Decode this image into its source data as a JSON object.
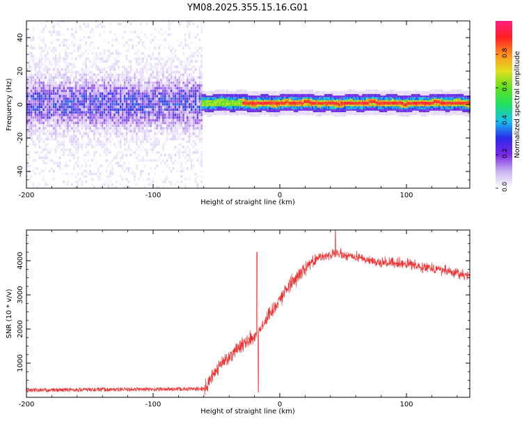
{
  "title": "YM08.2025.355.15.16.G01",
  "chart_data": [
    {
      "type": "heatmap",
      "name": "spectrogram",
      "xlabel": "Height of straight line (km)",
      "ylabel": "Frequency (Hz)",
      "xlim": [
        -200,
        150
      ],
      "ylim": [
        -50,
        50
      ],
      "xticks": [
        -200,
        -100,
        0,
        100
      ],
      "yticks": [
        -40,
        -20,
        0,
        20,
        40
      ],
      "xtick_labels": [
        "-200",
        "-100",
        "0",
        "100"
      ],
      "ytick_labels": [
        "-40",
        "-20",
        "0",
        "20",
        "40"
      ],
      "noise_region_x": [
        -200,
        -62
      ],
      "signal_region_x": [
        -62,
        150
      ],
      "signal_center_freq_hz": 0.5,
      "colorbar": {
        "label": "Normalized spectral amplitude",
        "range": [
          0.0,
          1.0
        ],
        "ticks": [
          0.0,
          0.2,
          0.4,
          0.6,
          0.8
        ],
        "tick_labels": [
          "0.0",
          "0.2",
          "0.4",
          "0.6",
          "0.8"
        ],
        "colormap": [
          "#ffffff",
          "#c8b4f0",
          "#7a28e6",
          "#2a2ae8",
          "#18c0f0",
          "#20e060",
          "#60e020",
          "#e0e020",
          "#ff9020",
          "#ff2020",
          "#ff2080"
        ]
      }
    },
    {
      "type": "line",
      "name": "snr",
      "xlabel": "Height of straight line (km)",
      "ylabel": "SNR (10 * v/v)",
      "xlim": [
        -200,
        150
      ],
      "ylim": [
        0,
        4900
      ],
      "xticks": [
        -200,
        -100,
        0,
        100
      ],
      "yticks": [
        1000,
        2000,
        3000,
        4000
      ],
      "xtick_labels": [
        "-200",
        "-100",
        "0",
        "100"
      ],
      "ytick_labels": [
        "1000",
        "2000",
        "3000",
        "4000"
      ],
      "color": "#f03030",
      "envelope": [
        {
          "x": -200,
          "y": 180
        },
        {
          "x": -150,
          "y": 200
        },
        {
          "x": -100,
          "y": 210
        },
        {
          "x": -60,
          "y": 220
        },
        {
          "x": -48,
          "y": 900
        },
        {
          "x": -35,
          "y": 1400
        },
        {
          "x": -20,
          "y": 1800
        },
        {
          "x": -10,
          "y": 2300
        },
        {
          "x": 0,
          "y": 2900
        },
        {
          "x": 10,
          "y": 3400
        },
        {
          "x": 20,
          "y": 3800
        },
        {
          "x": 30,
          "y": 4100
        },
        {
          "x": 45,
          "y": 4200
        },
        {
          "x": 60,
          "y": 4100
        },
        {
          "x": 80,
          "y": 3950
        },
        {
          "x": 100,
          "y": 3900
        },
        {
          "x": 120,
          "y": 3800
        },
        {
          "x": 150,
          "y": 3550
        }
      ],
      "spikes": [
        {
          "x": -18,
          "y": 4250
        },
        {
          "x": -17,
          "y": 150
        },
        {
          "x": 44,
          "y": 4900
        }
      ]
    }
  ]
}
